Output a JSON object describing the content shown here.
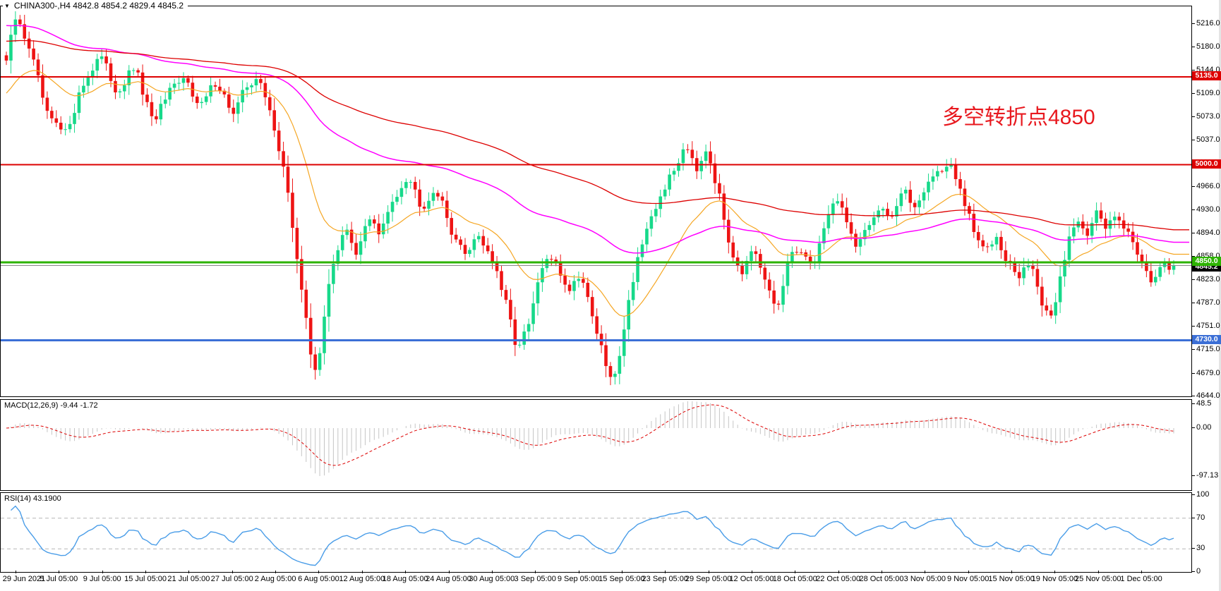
{
  "header": {
    "symbol_menu_icon": "dropdown-triangle",
    "title": "CHINA300-,H4  4842.8 4854.2 4829.4 4845.2"
  },
  "annotation": {
    "text": "多空转折点4850",
    "color": "#e8191f"
  },
  "colors": {
    "up_candle": "#17d98a",
    "down_candle": "#ee1414",
    "ma_fast": "#f5a623",
    "ma_medium": "#ff00ff",
    "ma_slow": "#dd0000",
    "macd_histogram": "#c5c5c5",
    "macd_signal": "#dd0000",
    "rsi_line": "#4a9de8",
    "level_red": "#dd0000",
    "level_green": "#2db300",
    "level_blue": "#3b6fd6",
    "current_price_line": "#888888"
  },
  "chart_data": [
    {
      "type": "candlestick-ohlc",
      "symbol": "CHINA300-",
      "timeframe": "H4",
      "ohlc_display": {
        "open": "4842.8",
        "high": "4854.2",
        "low": "4829.4",
        "close": "4845.2"
      },
      "y_range": [
        4644,
        5243
      ],
      "num_bars": 258,
      "last_close": 4845.2,
      "close_waypoints": [
        [
          0.0,
          5160
        ],
        [
          0.008,
          5225
        ],
        [
          0.02,
          5180
        ],
        [
          0.035,
          5075
        ],
        [
          0.05,
          5045
        ],
        [
          0.065,
          5120
        ],
        [
          0.08,
          5170
        ],
        [
          0.095,
          5110
        ],
        [
          0.11,
          5150
        ],
        [
          0.125,
          5065
        ],
        [
          0.14,
          5110
        ],
        [
          0.155,
          5135
        ],
        [
          0.165,
          5085
        ],
        [
          0.18,
          5130
        ],
        [
          0.195,
          5075
        ],
        [
          0.205,
          5120
        ],
        [
          0.215,
          5135
        ],
        [
          0.228,
          5070
        ],
        [
          0.238,
          4990
        ],
        [
          0.248,
          4870
        ],
        [
          0.256,
          4770
        ],
        [
          0.263,
          4680
        ],
        [
          0.27,
          4725
        ],
        [
          0.278,
          4840
        ],
        [
          0.29,
          4905
        ],
        [
          0.3,
          4855
        ],
        [
          0.31,
          4925
        ],
        [
          0.32,
          4890
        ],
        [
          0.332,
          4950
        ],
        [
          0.344,
          4985
        ],
        [
          0.356,
          4935
        ],
        [
          0.368,
          4965
        ],
        [
          0.38,
          4905
        ],
        [
          0.392,
          4860
        ],
        [
          0.404,
          4895
        ],
        [
          0.416,
          4855
        ],
        [
          0.428,
          4785
        ],
        [
          0.438,
          4715
        ],
        [
          0.448,
          4755
        ],
        [
          0.458,
          4840
        ],
        [
          0.47,
          4860
        ],
        [
          0.48,
          4805
        ],
        [
          0.492,
          4835
        ],
        [
          0.502,
          4770
        ],
        [
          0.512,
          4700
        ],
        [
          0.52,
          4660
        ],
        [
          0.53,
          4760
        ],
        [
          0.54,
          4855
        ],
        [
          0.552,
          4910
        ],
        [
          0.562,
          4960
        ],
        [
          0.572,
          4990
        ],
        [
          0.582,
          5035
        ],
        [
          0.592,
          4995
        ],
        [
          0.6,
          5030
        ],
        [
          0.61,
          4955
        ],
        [
          0.62,
          4875
        ],
        [
          0.63,
          4835
        ],
        [
          0.64,
          4865
        ],
        [
          0.65,
          4820
        ],
        [
          0.66,
          4775
        ],
        [
          0.67,
          4850
        ],
        [
          0.68,
          4875
        ],
        [
          0.69,
          4840
        ],
        [
          0.7,
          4900
        ],
        [
          0.71,
          4955
        ],
        [
          0.72,
          4915
        ],
        [
          0.728,
          4870
        ],
        [
          0.738,
          4900
        ],
        [
          0.748,
          4940
        ],
        [
          0.758,
          4920
        ],
        [
          0.768,
          4960
        ],
        [
          0.778,
          4935
        ],
        [
          0.788,
          4970
        ],
        [
          0.798,
          4990
        ],
        [
          0.808,
          5000
        ],
        [
          0.818,
          4955
        ],
        [
          0.828,
          4900
        ],
        [
          0.838,
          4865
        ],
        [
          0.848,
          4895
        ],
        [
          0.858,
          4850
        ],
        [
          0.868,
          4825
        ],
        [
          0.878,
          4855
        ],
        [
          0.886,
          4790
        ],
        [
          0.894,
          4755
        ],
        [
          0.902,
          4820
        ],
        [
          0.91,
          4885
        ],
        [
          0.918,
          4920
        ],
        [
          0.926,
          4895
        ],
        [
          0.934,
          4925
        ],
        [
          0.942,
          4900
        ],
        [
          0.95,
          4930
        ],
        [
          0.958,
          4905
        ],
        [
          0.966,
          4875
        ],
        [
          0.974,
          4850
        ],
        [
          0.982,
          4820
        ],
        [
          0.99,
          4840
        ],
        [
          1.0,
          4845.2
        ]
      ],
      "horizontal_lines": [
        {
          "level": 5135,
          "color": "#dd0000",
          "width": 2,
          "name": "resistance-5135"
        },
        {
          "level": 5000,
          "color": "#dd0000",
          "width": 2,
          "name": "resistance-5000"
        },
        {
          "level": 4845.2,
          "color": "#888888",
          "width": 1,
          "name": "current-price"
        },
        {
          "level": 4850,
          "color": "#2db300",
          "width": 3,
          "name": "pivot-4850"
        },
        {
          "level": 4730,
          "color": "#3b6fd6",
          "width": 3,
          "name": "support-4730"
        }
      ],
      "moving_averages": [
        {
          "name": "ma-fast-orange",
          "color": "#f5a623",
          "period": 22,
          "seed": 5105,
          "stroke": 1.2
        },
        {
          "name": "ma-medium-magenta",
          "color": "#ff00ff",
          "period": 80,
          "seed": 5215,
          "stroke": 1.5
        },
        {
          "name": "ma-slow-red",
          "color": "#dd0000",
          "period": 150,
          "seed": 5190,
          "stroke": 1.3
        }
      ]
    },
    {
      "type": "macd",
      "params": "12,26,9",
      "current_macd": -9.44,
      "current_signal": -1.72,
      "y_ticks": [
        {
          "text": "48.5",
          "v": 48.5
        },
        {
          "text": "0.00",
          "v": 0
        },
        {
          "text": "-97.13",
          "v": -97.13
        }
      ],
      "histogram_color": "#c5c5c5",
      "signal_color": "#dd0000"
    },
    {
      "type": "line",
      "name": "RSI",
      "period": 14,
      "current": 43.19,
      "y_range": [
        0,
        100
      ],
      "levels": [
        70,
        30
      ],
      "y_ticks": [
        {
          "text": "100",
          "v": 100
        },
        {
          "text": "70",
          "v": 70
        },
        {
          "text": "30",
          "v": 30
        },
        {
          "text": "0",
          "v": 0
        }
      ],
      "color": "#4a9de8"
    }
  ],
  "price_axis": {
    "ticks": [
      5216,
      5180,
      5144,
      5109,
      5073,
      5037,
      4966,
      4930,
      4894,
      4858,
      4823,
      4787,
      4751,
      4715,
      4679,
      4644
    ],
    "tags": [
      {
        "text": "5135.0",
        "level": 5135,
        "bg": "#dd0000",
        "fg": "#ffffff"
      },
      {
        "text": "5000.0",
        "level": 5000,
        "bg": "#dd0000",
        "fg": "#ffffff"
      },
      {
        "text": "4845.2",
        "level": 4845.2,
        "bg": "#000000",
        "fg": "#ffffff",
        "shift": 3
      },
      {
        "text": "4850.0",
        "level": 4850,
        "bg": "#2db300",
        "fg": "#ffffff"
      },
      {
        "text": "4730.0",
        "level": 4730,
        "bg": "#3b6fd6",
        "fg": "#ffffff"
      }
    ]
  },
  "time_axis": {
    "labels": [
      "29 Jun 2021",
      "5 Jul 05:00",
      "9 Jul 05:00",
      "15 Jul 05:00",
      "21 Jul 05:00",
      "27 Jul 05:00",
      "2 Aug 05:00",
      "6 Aug 05:00",
      "12 Aug 05:00",
      "18 Aug 05:00",
      "24 Aug 05:00",
      "30 Aug 05:00",
      "3 Sep 05:00",
      "9 Sep 05:00",
      "15 Sep 05:00",
      "23 Sep 05:00",
      "29 Sep 05:00",
      "12 Oct 05:00",
      "18 Oct 05:00",
      "22 Oct 05:00",
      "28 Oct 05:00",
      "3 Nov 05:00",
      "9 Nov 05:00",
      "15 Nov 05:00",
      "19 Nov 05:00",
      "25 Nov 05:00",
      "1 Dec 05:00"
    ]
  },
  "macd_panel": {
    "label": "MACD(12,26,9) -9.44 -1.72"
  },
  "rsi_panel": {
    "label": "RSI(14) 43.1900"
  }
}
